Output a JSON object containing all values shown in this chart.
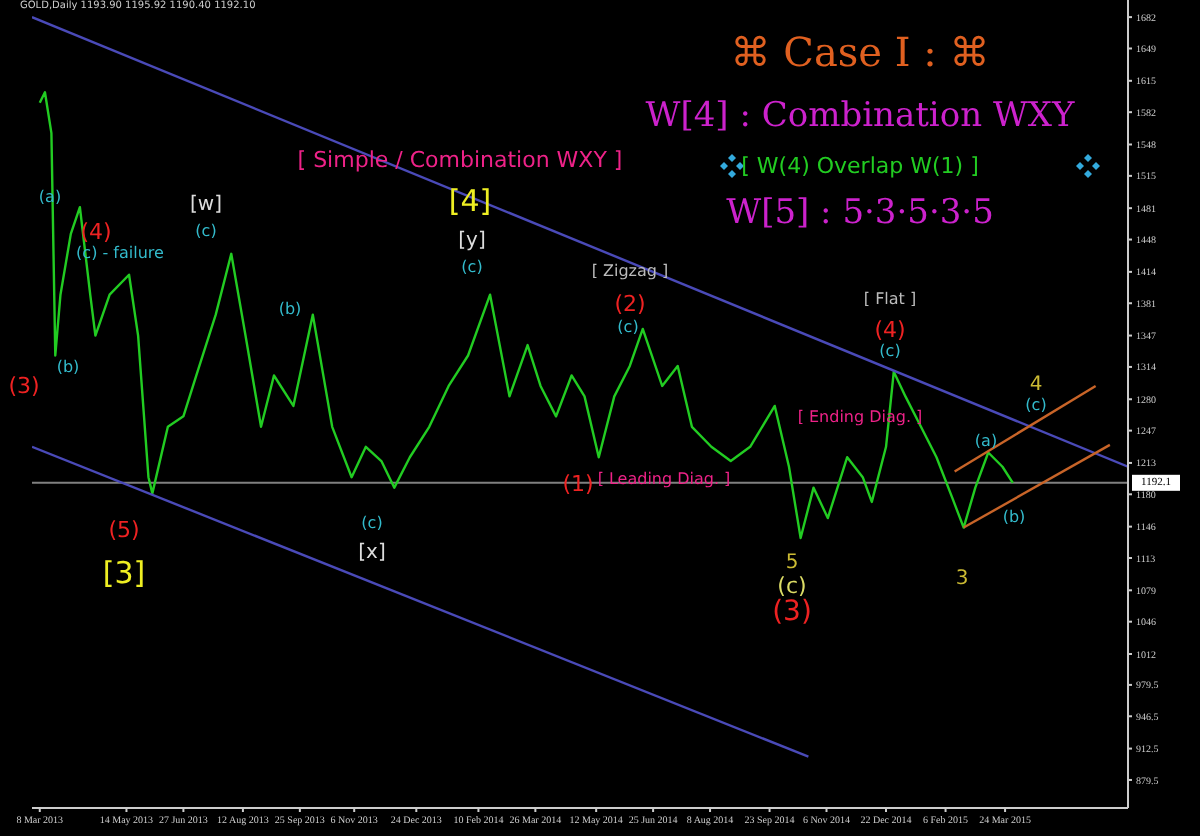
{
  "chart_data": {
    "type": "line",
    "title": "⌘   Case I :   ⌘",
    "subtitle": "W[4] : Combination WXY",
    "xlim": [
      "2013-03-02",
      "2015-06-27"
    ],
    "xticks": [
      {
        "value": "2013-03-08",
        "label": "8 Mar 2013"
      },
      {
        "value": "2013-05-14",
        "label": "14 May 2013"
      },
      {
        "value": "2013-06-27",
        "label": "27 Jun 2013"
      },
      {
        "value": "2013-08-12",
        "label": "12 Aug 2013"
      },
      {
        "value": "2013-09-25",
        "label": "25 Sep 2013"
      },
      {
        "value": "2013-11-06",
        "label": "6 Nov 2013"
      },
      {
        "value": "2013-12-24",
        "label": "24 Dec 2013"
      },
      {
        "value": "2014-02-10",
        "label": "10 Feb 2014"
      },
      {
        "value": "2014-03-26",
        "label": "26 Mar 2014"
      },
      {
        "value": "2014-05-12",
        "label": "12 May 2014"
      },
      {
        "value": "2014-06-25",
        "label": "25 Jun 2014"
      },
      {
        "value": "2014-08-08",
        "label": "8 Aug 2014"
      },
      {
        "value": "2014-09-23",
        "label": "23 Sep 2014"
      },
      {
        "value": "2014-11-06",
        "label": "6 Nov 2014"
      },
      {
        "value": "2014-12-22",
        "label": "22 Dec 2014"
      },
      {
        "value": "2015-02-06",
        "label": "6 Feb 2015"
      },
      {
        "value": "2015-03-24",
        "label": "24 Mar 2015"
      }
    ],
    "ylim": [
      850,
      1700
    ],
    "yticks": [
      879.5,
      912.5,
      946.5,
      979.5,
      1012,
      1046,
      1079,
      1113,
      1146,
      1180,
      1213,
      1247,
      1280,
      1314,
      1347,
      1381,
      1414,
      1448,
      1481,
      1515,
      1548,
      1582,
      1615,
      1649,
      1682
    ],
    "series": [
      {
        "color": "#22cc22",
        "x": [
          "2013-03-08",
          "2013-03-12",
          "2013-03-17",
          "2013-03-20",
          "2013-03-24",
          "2013-04-01",
          "2013-04-08",
          "2013-04-16",
          "2013-04-20",
          "2013-05-01",
          "2013-05-16",
          "2013-05-23",
          "2013-05-31",
          "2013-06-03",
          "2013-06-15",
          "2013-06-27",
          "2013-07-07",
          "2013-07-22",
          "2013-08-03",
          "2013-08-14",
          "2013-08-26",
          "2013-09-05",
          "2013-09-20",
          "2013-10-05",
          "2013-10-20",
          "2013-11-04",
          "2013-11-15",
          "2013-11-27",
          "2013-12-07",
          "2013-12-19",
          "2014-01-03",
          "2014-01-18",
          "2014-02-02",
          "2014-02-19",
          "2014-03-06",
          "2014-03-20",
          "2014-03-30",
          "2014-04-11",
          "2014-04-23",
          "2014-05-03",
          "2014-05-14",
          "2014-05-26",
          "2014-06-07",
          "2014-06-17",
          "2014-07-02",
          "2014-07-14",
          "2014-07-25",
          "2014-08-09",
          "2014-08-24",
          "2014-09-08",
          "2014-09-27",
          "2014-10-08",
          "2014-10-17",
          "2014-10-27",
          "2014-11-07",
          "2014-11-22",
          "2014-12-04",
          "2014-12-11",
          "2014-12-22",
          "2014-12-28",
          "2015-01-06",
          "2015-01-18",
          "2015-01-30",
          "2015-02-11",
          "2015-02-20",
          "2015-03-01",
          "2015-03-11",
          "2015-03-22",
          "2015-03-30"
        ],
        "values": [
          1592,
          1603,
          1560,
          1326,
          1390,
          1454,
          1482,
          1390,
          1347,
          1390,
          1411,
          1347,
          1198,
          1181,
          1251,
          1262,
          1305,
          1369,
          1433,
          1347,
          1251,
          1305,
          1273,
          1369,
          1251,
          1198,
          1230,
          1215,
          1187,
          1219,
          1251,
          1294,
          1326,
          1390,
          1283,
          1337,
          1294,
          1262,
          1305,
          1283,
          1219,
          1283,
          1315,
          1354,
          1294,
          1315,
          1251,
          1230,
          1215,
          1230,
          1273,
          1209,
          1134,
          1187,
          1155,
          1219,
          1198,
          1172,
          1230,
          1309,
          1283,
          1251,
          1219,
          1177,
          1145,
          1187,
          1224,
          1209,
          1192
        ]
      },
      {
        "color": "#4a4ab8",
        "x": [
          "2013-03-02",
          "2015-06-27"
        ],
        "values": [
          1682,
          1209
        ]
      },
      {
        "color": "#4a4ab8",
        "x": [
          "2013-03-02",
          "2014-10-23"
        ],
        "values": [
          1230,
          904
        ]
      },
      {
        "color": "#c86428",
        "x": [
          "2015-02-13",
          "2015-06-02"
        ],
        "values": [
          1204,
          1294
        ]
      },
      {
        "color": "#c86428",
        "x": [
          "2015-02-20",
          "2015-06-13"
        ],
        "values": [
          1145,
          1232
        ]
      }
    ],
    "ref_lines": [
      {
        "axis": "y",
        "value": 1192.1,
        "label": "1192.1",
        "color": "#808080"
      }
    ],
    "annotations": [
      "(3)",
      "(a)",
      "(b)",
      "(4)",
      "(c) - failure",
      "(5)",
      "[3]",
      "[w]",
      "(c)",
      "(b)",
      "(c)",
      "[x]",
      "[4]",
      "[y]",
      "(c)",
      "(1)",
      "(2)",
      "(c)",
      "5",
      "(c)",
      "(3)",
      "(4)",
      "(c)",
      "3",
      "(a)",
      "(b)",
      "4",
      "(c)",
      "[ Simple / Combination WXY ]",
      "[ Zigzag ]",
      "[ Flat ]",
      "[ Leading Diag. ]",
      "[ Ending Diag. ]",
      "[ W(4) Overlap W(1) ]",
      "W[5] : 5·3·5·3·5",
      "GOLD,Daily  1193.90 1195.92 1190.40 1192.10"
    ]
  }
}
